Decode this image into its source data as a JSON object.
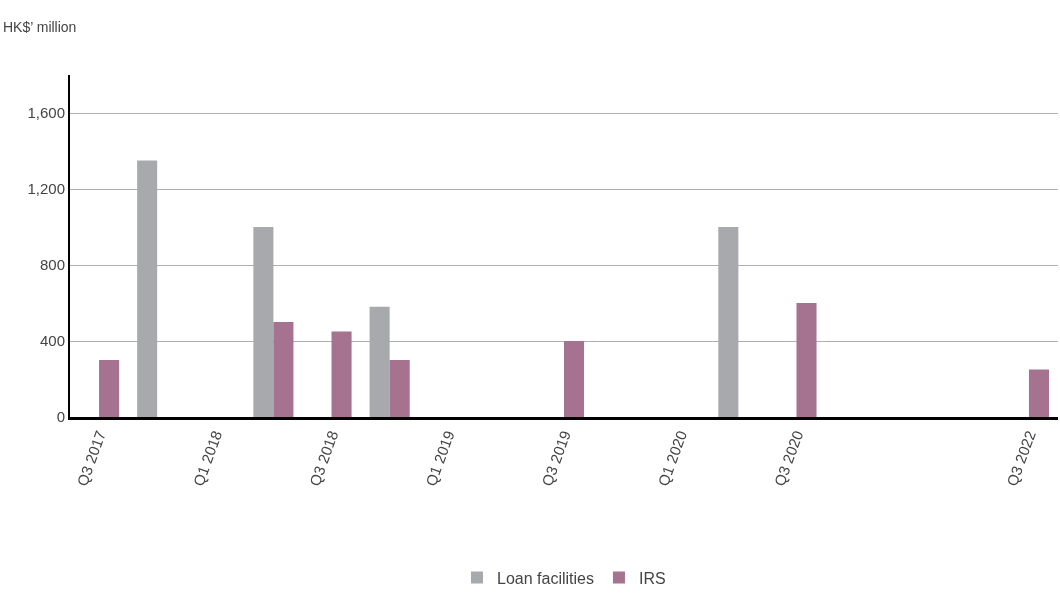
{
  "chart_data": {
    "type": "bar",
    "ylabel": "HK$’ million",
    "categories": [
      "Q3 2017",
      null,
      "Q1 2018",
      null,
      "Q3 2018",
      null,
      "Q1 2019",
      null,
      "Q3 2019",
      null,
      "Q1 2020",
      null,
      "Q3 2020",
      null,
      null,
      null,
      "Q3 2022"
    ],
    "series": [
      {
        "name": "Loan facilities",
        "color": "#a7a9ac",
        "values": [
          null,
          1350,
          null,
          1000,
          null,
          580,
          null,
          null,
          null,
          null,
          null,
          1000,
          null,
          null,
          null,
          null,
          null
        ]
      },
      {
        "name": "IRS",
        "color": "#a5728f",
        "values": [
          300,
          null,
          null,
          500,
          450,
          300,
          null,
          null,
          400,
          null,
          null,
          null,
          600,
          null,
          null,
          null,
          250
        ]
      }
    ],
    "ylim": [
      0,
      1800
    ],
    "yticks": [
      0,
      {
        "value": 400,
        "label": "400"
      },
      {
        "value": 800,
        "label": "800"
      },
      {
        "value": 1200,
        "label": "1,200"
      },
      {
        "value": 1600,
        "label": "1,600"
      }
    ],
    "grid": "y",
    "legend": "bottom"
  }
}
